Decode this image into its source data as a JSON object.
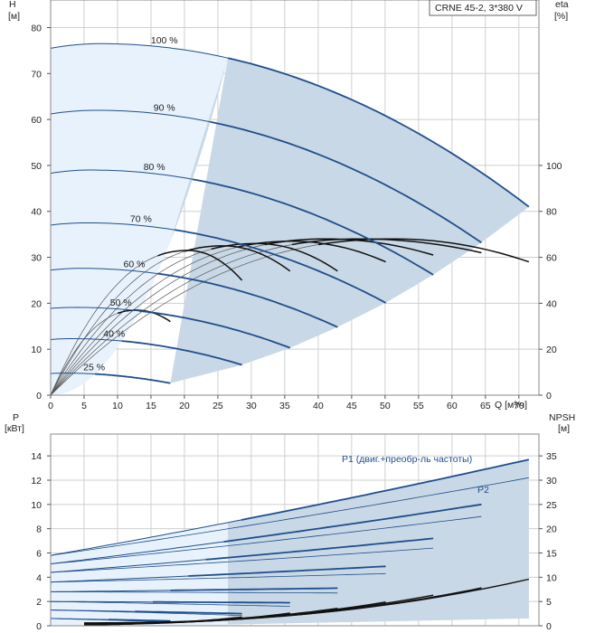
{
  "colors": {
    "band_light": "#e8f2fc",
    "band_dark": "#c9d8e6",
    "curve_blue": "#1f4e8c",
    "curve_black": "#111111",
    "curve_thin": "#555555",
    "grid": "#cfcfcf"
  },
  "chart_data": [
    {
      "type": "line",
      "legend_box": "CRNE 45-2, 3*380 V",
      "x_axis": {
        "label": "Q [м³/ч]",
        "lim": [
          0,
          73
        ],
        "ticks": [
          0,
          5,
          10,
          15,
          20,
          25,
          30,
          35,
          40,
          45,
          50,
          55,
          60,
          65,
          70
        ]
      },
      "y_left": {
        "label_line1": "H",
        "label_line2": "[м]",
        "lim": [
          0,
          86
        ],
        "ticks": [
          0,
          10,
          20,
          30,
          40,
          50,
          60,
          70,
          80
        ]
      },
      "y_right": {
        "label_line1": "eta",
        "label_line2": "[%]",
        "lim": [
          0,
          172
        ],
        "ticks": [
          0,
          20,
          40,
          60,
          80,
          100
        ]
      },
      "head_curves": [
        {
          "name": "100 %",
          "shut_off": 75.5,
          "peak_q": 7.5,
          "peak_h": 76.5,
          "q_max": 71.5,
          "h_end": 41
        },
        {
          "name": "90 %",
          "shut_off": 61.2,
          "peak_q": 6.8,
          "peak_h": 62.0,
          "q_max": 64.4,
          "h_end": 33.2
        },
        {
          "name": "80 %",
          "shut_off": 48.3,
          "peak_q": 6.0,
          "peak_h": 49.0,
          "q_max": 57.2,
          "h_end": 26.2
        },
        {
          "name": "70 %",
          "shut_off": 37.0,
          "peak_q": 5.3,
          "peak_h": 37.5,
          "q_max": 50.1,
          "h_end": 20.1
        },
        {
          "name": "60 %",
          "shut_off": 27.2,
          "peak_q": 4.5,
          "peak_h": 27.6,
          "q_max": 42.9,
          "h_end": 14.8
        },
        {
          "name": "50 %",
          "shut_off": 18.9,
          "peak_q": 3.8,
          "peak_h": 19.1,
          "q_max": 35.8,
          "h_end": 10.3
        },
        {
          "name": "40 %",
          "shut_off": 12.1,
          "peak_q": 3.0,
          "peak_h": 12.3,
          "q_max": 28.6,
          "h_end": 6.6
        },
        {
          "name": "25 %",
          "shut_off": 4.7,
          "peak_q": 1.9,
          "peak_h": 4.8,
          "q_max": 17.9,
          "h_end": 2.6
        }
      ],
      "efficiency_curves": [
        {
          "q_end": 71.5,
          "eta_end": 58,
          "eta_peak": 68
        },
        {
          "q_end": 64.4,
          "eta_end": 62,
          "eta_peak": 68
        },
        {
          "q_end": 57.2,
          "eta_end": 61,
          "eta_peak": 68
        },
        {
          "q_end": 50.1,
          "eta_end": 58,
          "eta_peak": 67
        },
        {
          "q_end": 42.9,
          "eta_end": 54,
          "eta_peak": 66
        },
        {
          "q_end": 35.8,
          "eta_end": 54,
          "eta_peak": 65
        },
        {
          "q_end": 28.6,
          "eta_end": 50,
          "eta_peak": 63
        },
        {
          "q_end": 17.9,
          "eta_end": 32,
          "eta_peak": 37
        }
      ]
    },
    {
      "type": "line",
      "x_axis": {
        "lim": [
          0,
          73
        ]
      },
      "y_left": {
        "label_line1": "P",
        "label_line2": "[кВт]",
        "lim": [
          0,
          15.8
        ],
        "ticks": [
          0,
          2,
          4,
          6,
          8,
          10,
          12,
          14
        ]
      },
      "y_right": {
        "label_line1": "NPSH",
        "label_line2": "[м]",
        "lim": [
          0,
          39.5
        ],
        "ticks": [
          0,
          5,
          10,
          15,
          20,
          25,
          30,
          35
        ]
      },
      "series_labels": {
        "p1": "P1 (двиг.+преобр-ль частоты)",
        "p2": "P2"
      },
      "power_curves": [
        {
          "p_zero": 5.8,
          "p1_end": 13.7,
          "p2_end": 12.2,
          "q_max": 71.5
        },
        {
          "p_zero": 5.1,
          "p1_end": 10.0,
          "p2_end": 9.0,
          "q_max": 64.4
        },
        {
          "p_zero": 4.4,
          "p1_end": 7.2,
          "p2_end": 6.4,
          "q_max": 57.2
        },
        {
          "p_zero": 3.6,
          "p1_end": 4.9,
          "p2_end": 4.3,
          "q_max": 50.1
        },
        {
          "p_zero": 2.8,
          "p1_end": 3.1,
          "p2_end": 2.7,
          "q_max": 42.9
        },
        {
          "p_zero": 2.0,
          "p1_end": 1.9,
          "p2_end": 1.6,
          "q_max": 35.8
        },
        {
          "p_zero": 1.3,
          "p1_end": 1.0,
          "p2_end": 0.85,
          "q_max": 28.6
        },
        {
          "p_zero": 0.6,
          "p1_end": 0.4,
          "p2_end": 0.3,
          "q_max": 17.9
        }
      ],
      "npsh_curves": [
        {
          "q_start": 5,
          "q_end": 71.5,
          "npsh_start": 0.6,
          "npsh_end": 9.6
        },
        {
          "q_start": 5,
          "q_end": 64.4,
          "npsh_start": 0.5,
          "npsh_end": 7.8
        },
        {
          "q_start": 5,
          "q_end": 57.2,
          "npsh_start": 0.5,
          "npsh_end": 6.3
        },
        {
          "q_start": 5,
          "q_end": 50.1,
          "npsh_start": 0.4,
          "npsh_end": 4.9
        },
        {
          "q_start": 5,
          "q_end": 42.9,
          "npsh_start": 0.4,
          "npsh_end": 3.6
        },
        {
          "q_start": 5,
          "q_end": 35.8,
          "npsh_start": 0.3,
          "npsh_end": 2.6
        },
        {
          "q_start": 5,
          "q_end": 28.6,
          "npsh_start": 0.3,
          "npsh_end": 1.8
        },
        {
          "q_start": 5,
          "q_end": 17.9,
          "npsh_start": 0.2,
          "npsh_end": 0.9
        }
      ]
    }
  ]
}
